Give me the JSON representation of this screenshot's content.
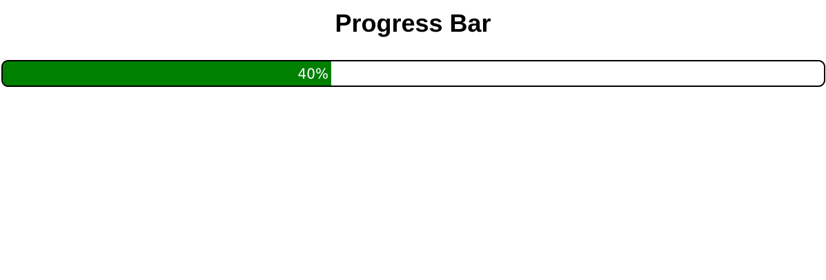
{
  "page": {
    "title": "Progress Bar"
  },
  "progress": {
    "value": 0.4,
    "label": "40%"
  },
  "colors": {
    "fill": "#008000",
    "track": "#ffffff",
    "border": "#000000",
    "label": "#ffffff"
  }
}
